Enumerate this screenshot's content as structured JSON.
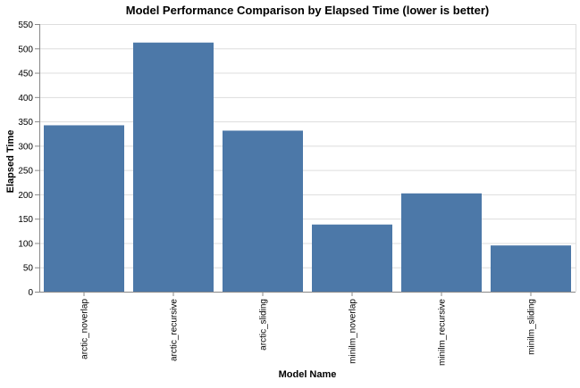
{
  "chart_data": {
    "type": "bar",
    "title": "Model Performance Comparison by Elapsed Time (lower is better)",
    "xlabel": "Model Name",
    "ylabel": "Elapsed Time",
    "categories": [
      "arctic_noverlap",
      "arctic_recursive",
      "arctic_sliding",
      "minilm_noverlap",
      "minilm_recursive",
      "minilm_sliding"
    ],
    "values": [
      342,
      512,
      331,
      138,
      202,
      95
    ],
    "ylim": [
      0,
      550
    ],
    "yticks": [
      0,
      50,
      100,
      150,
      200,
      250,
      300,
      350,
      400,
      450,
      500,
      550
    ],
    "grid": true,
    "bar_color": "#4c78a8",
    "grid_color": "#dddddd",
    "axis_color": "#888888"
  }
}
